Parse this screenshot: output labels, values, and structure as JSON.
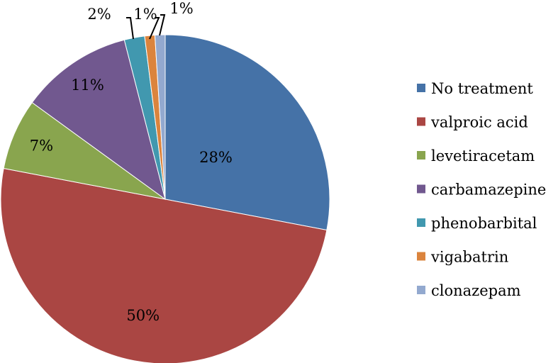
{
  "chart_data": {
    "type": "pie",
    "title": "",
    "legend_position": "right",
    "start_angle_deg": 0,
    "direction": "clockwise",
    "slices": [
      {
        "name": "No treatment",
        "value": 28,
        "label": "28%",
        "color": "#4572A7"
      },
      {
        "name": "valproic acid",
        "value": 50,
        "label": "50%",
        "color": "#AA4643"
      },
      {
        "name": "levetiracetam",
        "value": 7,
        "label": "7%",
        "color": "#89A54E"
      },
      {
        "name": "carbamazepine",
        "value": 11,
        "label": "11%",
        "color": "#71588F"
      },
      {
        "name": "phenobarbital",
        "value": 2,
        "label": "2%",
        "color": "#4198AF"
      },
      {
        "name": "vigabatrin",
        "value": 1,
        "label": "1%",
        "color": "#DB843D"
      },
      {
        "name": "clonazepam",
        "value": 1,
        "label": "1%",
        "color": "#93A9CF"
      }
    ]
  }
}
